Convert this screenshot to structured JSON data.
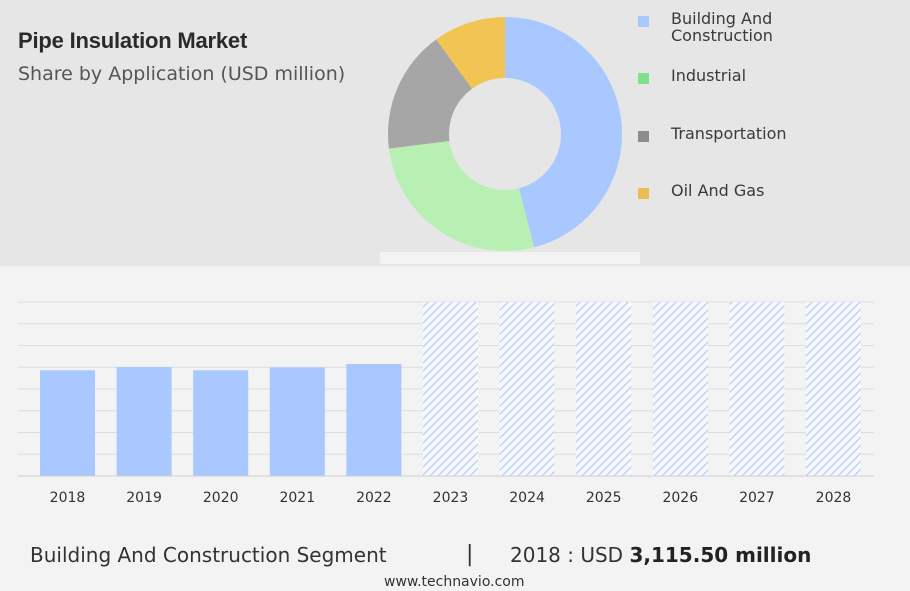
{
  "header": {
    "title": "Pipe Insulation Market",
    "subtitle": "Share by Application (USD million)"
  },
  "chart_data": [
    {
      "type": "pie",
      "variant": "donut",
      "categories": [
        "Building And Construction",
        "Industrial",
        "Transportation",
        "Oil And Gas"
      ],
      "values": [
        46,
        27,
        17,
        10
      ],
      "colors": [
        "#a8c8ff",
        "#b8f0b4",
        "#a6a6a6",
        "#f1c453"
      ],
      "legend_placement": "right"
    },
    {
      "type": "bar",
      "categories": [
        "2018",
        "2019",
        "2020",
        "2021",
        "2022",
        "2023",
        "2024",
        "2025",
        "2026",
        "2027",
        "2028"
      ],
      "values": [
        3115.5,
        3210,
        3115.5,
        3200,
        3300,
        null,
        null,
        null,
        null,
        null,
        null
      ],
      "forecast_years": [
        "2023",
        "2024",
        "2025",
        "2026",
        "2027",
        "2028"
      ],
      "bar_color": "#a8c8ff",
      "forecast_style": "hatched",
      "grid": true
    }
  ],
  "legend": {
    "items": [
      {
        "label": "Building And Construction",
        "color": "#a8c8ff"
      },
      {
        "label": "Industrial",
        "color": "#7fe08e"
      },
      {
        "label": "Transportation",
        "color": "#8c8c8c"
      },
      {
        "label": "Oil And Gas",
        "color": "#e9bf55"
      }
    ]
  },
  "footer": {
    "segment": "Building And Construction Segment",
    "separator": "|",
    "year_prefix": "2018 : USD",
    "value": "3,115.50 million",
    "website": "www.technavio.com"
  }
}
